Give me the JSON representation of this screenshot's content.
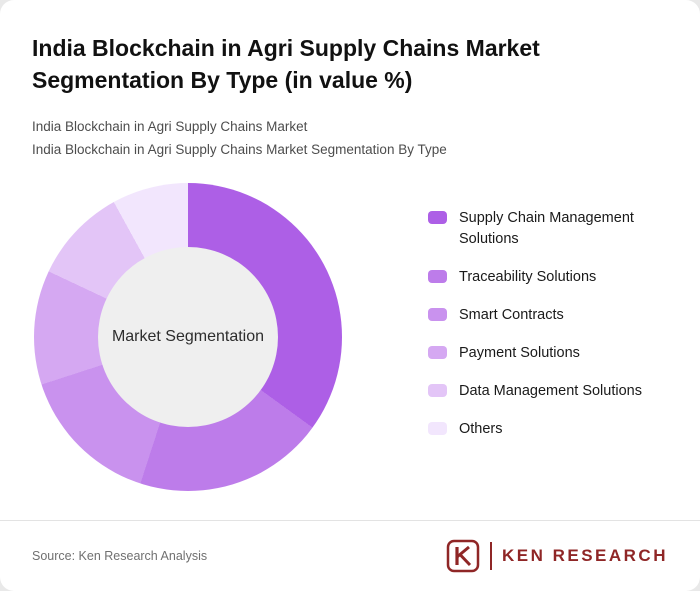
{
  "header": {
    "title": "India Blockchain in Agri Supply Chains Market Segmentation By Type (in value %)",
    "subtitle1": "India Blockchain in Agri Supply Chains Market",
    "subtitle2": "India Blockchain in Agri Supply Chains Market Segmentation By Type"
  },
  "chart_data": {
    "type": "pie",
    "subtype": "donut",
    "title": "India Blockchain in Agri Supply Chains Market Segmentation By Type (in value %)",
    "center_label": "Market Segmentation",
    "unit": "value %",
    "legend_position": "right",
    "start_angle_deg": 0,
    "direction": "clockwise",
    "hole_color": "#efefef",
    "series": [
      {
        "label": "Supply Chain Management Solutions",
        "value": 35,
        "color": "#ad5fe6"
      },
      {
        "label": "Traceability Solutions",
        "value": 20,
        "color": "#bd7cea"
      },
      {
        "label": "Smart Contracts",
        "value": 15,
        "color": "#c992ee"
      },
      {
        "label": "Payment Solutions",
        "value": 12,
        "color": "#d5a8f2"
      },
      {
        "label": "Data Management Solutions",
        "value": 10,
        "color": "#e3c5f7"
      },
      {
        "label": "Others",
        "value": 8,
        "color": "#f2e6fd"
      }
    ]
  },
  "footer": {
    "source": "Source: Ken Research Analysis",
    "logo": {
      "mark": "K",
      "text": "KEN RESEARCH",
      "color": "#8f2626"
    }
  }
}
